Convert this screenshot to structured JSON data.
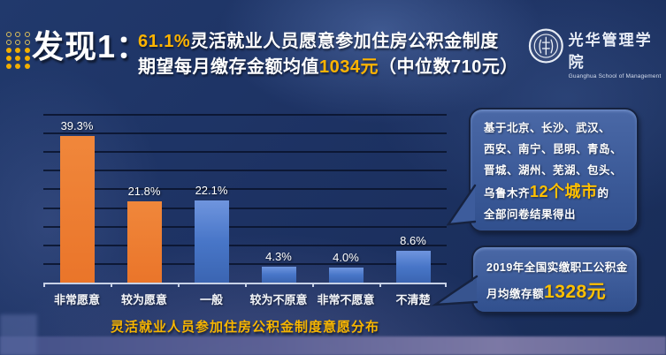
{
  "header": {
    "finding_label": "发现1：",
    "headline_line1": {
      "highlight": "61.1%",
      "text": "灵活就业人员愿意参加住房公积金制度"
    },
    "headline_line2": {
      "pre": "期望每月缴存金额均值",
      "highlight": "1034元",
      "post": "（中位数710元）"
    },
    "logo": {
      "cn": "光华管理学院",
      "en": "Guanghua School of Management"
    }
  },
  "chart_data": {
    "type": "bar",
    "title": "灵活就业人员参加住房公积金制度意愿分布",
    "categories": [
      "非常愿意",
      "较为愿意",
      "一般",
      "较为不原意",
      "非常不愿意",
      "不清楚"
    ],
    "values": [
      39.3,
      21.8,
      22.1,
      4.3,
      4.0,
      8.6
    ],
    "value_labels": [
      "39.3%",
      "21.8%",
      "22.1%",
      "4.3%",
      "4.0%",
      "8.6%"
    ],
    "bar_colors": [
      "#ED7D31",
      "#ED7D31",
      "#4472C4",
      "#4472C4",
      "#4472C4",
      "#4472C4"
    ],
    "xlabel": "",
    "ylabel": "",
    "ylim": [
      0,
      45
    ],
    "grid_step": 5,
    "grid": "on",
    "legend": "none"
  },
  "callouts": {
    "cities_note": {
      "segments": [
        {
          "t": "基于北京、长沙、武汉、",
          "br": true
        },
        {
          "t": "西安、南宁、昆明、青岛、",
          "br": true
        },
        {
          "t": "晋城、湖州、芜湖、包头、",
          "br": true
        },
        {
          "t": "乌鲁木齐"
        },
        {
          "t": "12个城市",
          "cls": "hl"
        },
        {
          "t": "的",
          "br": true
        },
        {
          "t": "全部问卷结果得出"
        }
      ]
    },
    "fund_note": {
      "segments": [
        {
          "t": "2019年全国实缴职工公积金",
          "br": true
        },
        {
          "t": "月均缴存额"
        },
        {
          "t": "1328元",
          "cls": "hl-big"
        }
      ]
    }
  },
  "colors": {
    "background": "#1E3566",
    "accent_yellow": "#FFC000",
    "bar_orange": "#ED7D31",
    "bar_blue": "#4472C4",
    "gridline": "#09132B",
    "axis": "#C7D1E6"
  }
}
